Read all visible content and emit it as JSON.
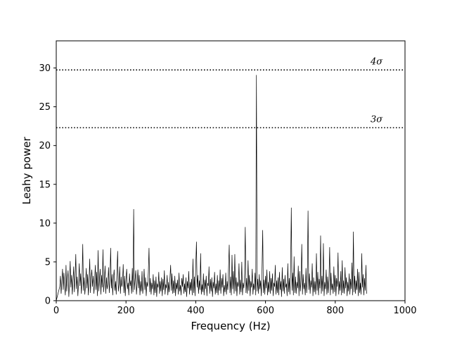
{
  "chart_data": {
    "type": "line",
    "title": "",
    "xlabel": "Frequency (Hz)",
    "ylabel": "Leahy power",
    "xlim": [
      0,
      1000
    ],
    "ylim": [
      0,
      33.5
    ],
    "xticks": [
      0,
      200,
      400,
      600,
      800,
      1000
    ],
    "yticks": [
      0,
      5,
      10,
      15,
      20,
      25,
      30
    ],
    "xtick_labels": [
      "0",
      "200",
      "400",
      "600",
      "800",
      "1000"
    ],
    "ytick_labels": [
      "0",
      "5",
      "10",
      "15",
      "20",
      "25",
      "30"
    ],
    "grid": false,
    "legend": "none",
    "line_color": "#000000",
    "frequency_step_hz": 2,
    "frequency_start_hz": 10,
    "series": [
      {
        "values": [
          1.8,
          3.2,
          0.9,
          2.5,
          4.1,
          1.4,
          3.6,
          2.0,
          0.7,
          4.6,
          1.2,
          2.8,
          3.9,
          0.5,
          2.2,
          5.1,
          1.7,
          3.3,
          0.8,
          2.6,
          4.4,
          1.1,
          2.9,
          6.0,
          1.5,
          3.1,
          0.6,
          2.4,
          4.8,
          1.9,
          3.5,
          0.9,
          2.7,
          7.3,
          1.3,
          3.0,
          0.8,
          2.1,
          4.2,
          1.6,
          3.4,
          0.7,
          2.5,
          5.4,
          1.0,
          2.9,
          4.0,
          1.8,
          3.2,
          0.9,
          2.3,
          4.6,
          1.4,
          3.7,
          0.6,
          6.5,
          1.2,
          2.8,
          4.1,
          0.8,
          3.3,
          1.7,
          6.6,
          1.1,
          2.6,
          4.5,
          0.9,
          3.0,
          1.5,
          2.2,
          4.3,
          1.0,
          2.7,
          6.8,
          1.6,
          3.4,
          0.7,
          2.9,
          4.0,
          1.3,
          2.5,
          0.8,
          3.6,
          6.4,
          1.2,
          2.1,
          4.4,
          0.9,
          3.1,
          1.8,
          2.4,
          4.7,
          1.0,
          3.2,
          0.6,
          2.8,
          4.1,
          1.5,
          2.3,
          0.7,
          3.5,
          1.9,
          2.6,
          0.9,
          4.2,
          1.1,
          11.8,
          1.4,
          2.7,
          3.9,
          0.8,
          2.2,
          4.0,
          1.6,
          3.3,
          0.7,
          2.5,
          1.2,
          3.8,
          0.9,
          2.0,
          4.1,
          1.4,
          3.0,
          0.6,
          2.4,
          1.8,
          3.6,
          6.8,
          1.1,
          2.9,
          0.8,
          2.3,
          1.5,
          3.4,
          0.7,
          2.6,
          1.0,
          3.1,
          0.5,
          2.2,
          1.7,
          3.7,
          0.9,
          2.5,
          1.2,
          3.0,
          0.6,
          2.8,
          1.4,
          3.9,
          0.8,
          2.1,
          1.6,
          3.3,
          0.7,
          2.4,
          1.1,
          2.9,
          4.6,
          1.3,
          3.5,
          0.9,
          2.6,
          1.0,
          3.2,
          0.6,
          2.3,
          1.5,
          2.7,
          0.8,
          3.6,
          1.2,
          2.0,
          0.7,
          2.9,
          1.8,
          3.4,
          0.9,
          2.2,
          1.1,
          3.0,
          0.5,
          2.5,
          1.6,
          3.8,
          0.8,
          2.4,
          1.3,
          2.8,
          0.7,
          5.4,
          1.0,
          3.1,
          0.6,
          4.5,
          7.6,
          1.7,
          3.3,
          0.9,
          2.6,
          1.4,
          6.1,
          0.8,
          2.1,
          1.1,
          3.5,
          0.7,
          2.7,
          1.5,
          3.2,
          0.6,
          2.3,
          1.9,
          4.4,
          0.9,
          2.8,
          1.2,
          3.0,
          0.5,
          2.4,
          1.6,
          3.7,
          0.8,
          2.2,
          1.0,
          3.3,
          0.7,
          2.6,
          1.3,
          4.0,
          0.9,
          2.9,
          1.7,
          3.4,
          0.6,
          2.0,
          1.1,
          3.6,
          0.8,
          2.5,
          1.4,
          4.2,
          7.2,
          1.0,
          3.1,
          0.7,
          5.9,
          1.5,
          3.8,
          0.9,
          6.0,
          1.2,
          3.0,
          0.6,
          2.4,
          1.8,
          4.8,
          0.8,
          2.7,
          1.1,
          5.0,
          0.7,
          2.3,
          1.6,
          3.5,
          9.5,
          1.0,
          2.9,
          0.9,
          5.2,
          1.3,
          3.3,
          0.6,
          2.5,
          1.7,
          4.1,
          0.8,
          2.2,
          1.4,
          3.6,
          0.7,
          29.1,
          1.2,
          2.8,
          0.9,
          3.4,
          1.5,
          2.6,
          0.6,
          3.9,
          9.1,
          1.0,
          2.7,
          0.8,
          3.2,
          1.6,
          4.0,
          0.7,
          2.4,
          1.1,
          3.8,
          0.9,
          2.9,
          1.3,
          3.5,
          0.6,
          2.3,
          1.8,
          4.6,
          0.8,
          2.6,
          1.0,
          3.0,
          0.7,
          3.7,
          1.4,
          2.5,
          0.5,
          4.3,
          1.2,
          2.8,
          0.9,
          3.3,
          1.7,
          2.2,
          0.6,
          4.8,
          1.1,
          2.9,
          0.8,
          4.1,
          12.0,
          1.3,
          3.6,
          0.7,
          5.7,
          1.0,
          3.1,
          0.9,
          2.4,
          1.6,
          4.5,
          0.6,
          3.8,
          1.2,
          2.7,
          7.3,
          0.8,
          3.4,
          1.5,
          2.3,
          0.7,
          4.2,
          1.0,
          2.9,
          11.6,
          1.4,
          3.5,
          0.9,
          2.6,
          1.7,
          4.8,
          0.6,
          3.0,
          1.1,
          2.5,
          0.8,
          6.1,
          1.3,
          3.7,
          0.7,
          2.8,
          1.6,
          8.4,
          0.9,
          3.2,
          1.2,
          7.4,
          0.6,
          2.4,
          1.5,
          4.0,
          0.8,
          3.1,
          1.0,
          2.7,
          6.9,
          0.7,
          3.6,
          1.4,
          2.2,
          0.9,
          4.4,
          1.1,
          3.3,
          0.6,
          2.9,
          1.8,
          6.2,
          0.8,
          2.5,
          1.3,
          3.8,
          0.7,
          5.2,
          1.0,
          2.6,
          0.9,
          4.3,
          1.6,
          3.0,
          0.6,
          2.4,
          1.2,
          3.5,
          0.8,
          2.8,
          1.5,
          4.9,
          0.7,
          8.9,
          1.1,
          3.2,
          0.9,
          2.6,
          1.4,
          4.1,
          0.6,
          3.7,
          1.0,
          2.3,
          0.8,
          6.1,
          1.7,
          3.4,
          0.7,
          2.9,
          1.3,
          4.6,
          0.9
        ]
      }
    ],
    "reference_lines": [
      {
        "y": 29.75,
        "label": "4σ",
        "style": "dotted"
      },
      {
        "y": 22.3,
        "label": "3σ",
        "style": "dotted"
      }
    ]
  }
}
